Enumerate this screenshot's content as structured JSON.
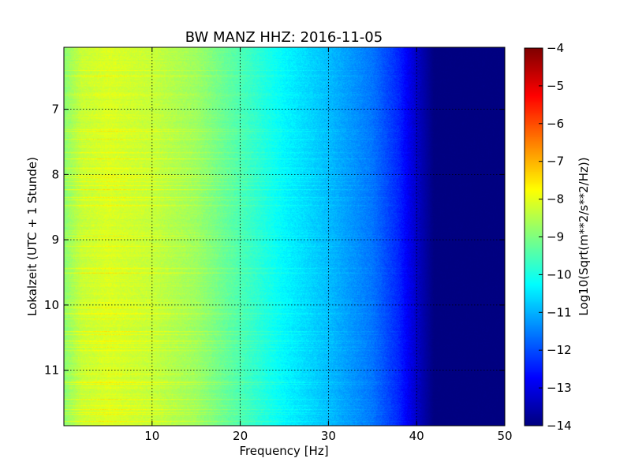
{
  "chart_data": {
    "type": "heatmap",
    "title": "BW MANZ HHZ: 2016-11-05",
    "xlabel": "Frequency [Hz]",
    "ylabel": "Lokalzeit (UTC + 1 Stunde)",
    "xlim": [
      0,
      50
    ],
    "ylim": [
      6.05,
      11.85
    ],
    "y_inverted": true,
    "x_ticks": [
      10,
      20,
      30,
      40,
      50
    ],
    "x_tick_labels": [
      "10",
      "20",
      "30",
      "40",
      "50"
    ],
    "y_ticks": [
      7,
      8,
      9,
      10,
      11
    ],
    "y_tick_labels": [
      "7",
      "8",
      "9",
      "10",
      "11"
    ],
    "grid": true,
    "colormap": "jet",
    "colorbar": {
      "label": "Log10(Sqrt(m**2/s**2/Hz))",
      "range": [
        -14,
        -4
      ],
      "ticks": [
        -4,
        -5,
        -6,
        -7,
        -8,
        -9,
        -10,
        -11,
        -12,
        -13,
        -14
      ],
      "tick_labels": [
        "−4",
        "−5",
        "−6",
        "−7",
        "−8",
        "−9",
        "−10",
        "−11",
        "−12",
        "−13",
        "−14"
      ]
    },
    "profile": {
      "frequency_hz": [
        0,
        2,
        5,
        10,
        15,
        20,
        25,
        30,
        35,
        38,
        40,
        42,
        50
      ],
      "log_amplitude": [
        -8.9,
        -8.3,
        -8.1,
        -8.3,
        -8.7,
        -9.5,
        -10.3,
        -10.9,
        -11.6,
        -12.4,
        -13.3,
        -14.0,
        -14.0
      ]
    }
  }
}
